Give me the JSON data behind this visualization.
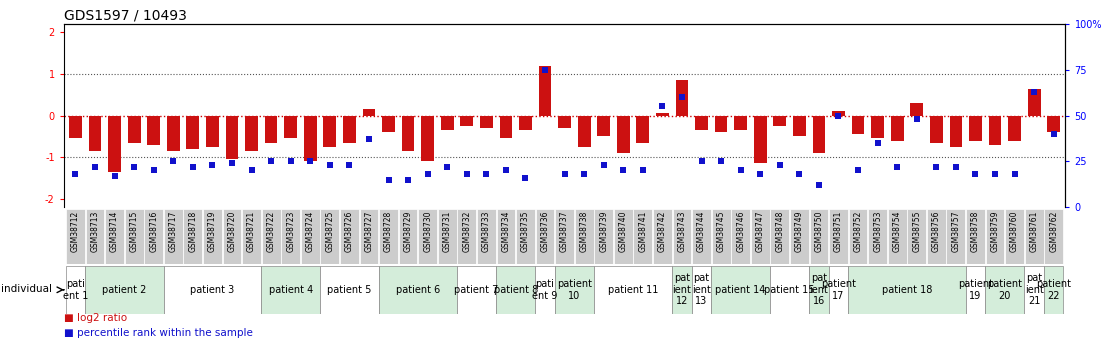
{
  "title": "GDS1597 / 10493",
  "samples": [
    "GSM38712",
    "GSM38713",
    "GSM38714",
    "GSM38715",
    "GSM38716",
    "GSM38717",
    "GSM38718",
    "GSM38719",
    "GSM38720",
    "GSM38721",
    "GSM38722",
    "GSM38723",
    "GSM38724",
    "GSM38725",
    "GSM38726",
    "GSM38727",
    "GSM38728",
    "GSM38729",
    "GSM38730",
    "GSM38731",
    "GSM38732",
    "GSM38733",
    "GSM38734",
    "GSM38735",
    "GSM38736",
    "GSM38737",
    "GSM38738",
    "GSM38739",
    "GSM38740",
    "GSM38741",
    "GSM38742",
    "GSM38743",
    "GSM38744",
    "GSM38745",
    "GSM38746",
    "GSM38747",
    "GSM38748",
    "GSM38749",
    "GSM38750",
    "GSM38751",
    "GSM38752",
    "GSM38753",
    "GSM38754",
    "GSM38755",
    "GSM38756",
    "GSM38757",
    "GSM38758",
    "GSM38759",
    "GSM38760",
    "GSM38761",
    "GSM38762"
  ],
  "log2_ratio": [
    -0.55,
    -0.85,
    -1.35,
    -0.65,
    -0.7,
    -0.85,
    -0.8,
    -0.75,
    -1.05,
    -0.85,
    -0.65,
    -0.55,
    -1.1,
    -0.75,
    -0.65,
    0.15,
    -0.4,
    -0.85,
    -1.1,
    -0.35,
    -0.25,
    -0.3,
    -0.55,
    -0.35,
    1.2,
    -0.3,
    -0.75,
    -0.5,
    -0.9,
    -0.65,
    0.05,
    0.85,
    -0.35,
    -0.4,
    -0.35,
    -1.15,
    -0.25,
    -0.5,
    -0.9,
    0.1,
    -0.45,
    -0.55,
    -0.6,
    0.3,
    -0.65,
    -0.75,
    -0.6,
    -0.7,
    -0.6,
    0.65,
    -0.4
  ],
  "percentile": [
    18,
    22,
    17,
    22,
    20,
    25,
    22,
    23,
    24,
    20,
    25,
    25,
    25,
    23,
    23,
    37,
    15,
    15,
    18,
    22,
    18,
    18,
    20,
    16,
    75,
    18,
    18,
    23,
    20,
    20,
    55,
    60,
    25,
    25,
    20,
    18,
    23,
    18,
    12,
    50,
    20,
    35,
    22,
    48,
    22,
    22,
    18,
    18,
    18,
    63,
    40
  ],
  "patients": [
    {
      "label": "pati\nent 1",
      "start": 0,
      "end": 1,
      "color": "#ffffff"
    },
    {
      "label": "patient 2",
      "start": 1,
      "end": 5,
      "color": "#d4edda"
    },
    {
      "label": "patient 3",
      "start": 5,
      "end": 10,
      "color": "#ffffff"
    },
    {
      "label": "patient 4",
      "start": 10,
      "end": 13,
      "color": "#d4edda"
    },
    {
      "label": "patient 5",
      "start": 13,
      "end": 16,
      "color": "#ffffff"
    },
    {
      "label": "patient 6",
      "start": 16,
      "end": 20,
      "color": "#d4edda"
    },
    {
      "label": "patient 7",
      "start": 20,
      "end": 22,
      "color": "#ffffff"
    },
    {
      "label": "patient 8",
      "start": 22,
      "end": 24,
      "color": "#d4edda"
    },
    {
      "label": "pati\nent 9",
      "start": 24,
      "end": 25,
      "color": "#ffffff"
    },
    {
      "label": "patient\n10",
      "start": 25,
      "end": 27,
      "color": "#d4edda"
    },
    {
      "label": "patient 11",
      "start": 27,
      "end": 31,
      "color": "#ffffff"
    },
    {
      "label": "pat\nient\n12",
      "start": 31,
      "end": 32,
      "color": "#d4edda"
    },
    {
      "label": "pat\nient\n13",
      "start": 32,
      "end": 33,
      "color": "#ffffff"
    },
    {
      "label": "patient 14",
      "start": 33,
      "end": 36,
      "color": "#d4edda"
    },
    {
      "label": "patient 15",
      "start": 36,
      "end": 38,
      "color": "#ffffff"
    },
    {
      "label": "pat\nient\n16",
      "start": 38,
      "end": 39,
      "color": "#d4edda"
    },
    {
      "label": "patient\n17",
      "start": 39,
      "end": 40,
      "color": "#ffffff"
    },
    {
      "label": "patient 18",
      "start": 40,
      "end": 46,
      "color": "#d4edda"
    },
    {
      "label": "patient\n19",
      "start": 46,
      "end": 47,
      "color": "#ffffff"
    },
    {
      "label": "patient\n20",
      "start": 47,
      "end": 49,
      "color": "#d4edda"
    },
    {
      "label": "pat\nient\n21",
      "start": 49,
      "end": 50,
      "color": "#ffffff"
    },
    {
      "label": "patient\n22",
      "start": 50,
      "end": 51,
      "color": "#d4edda"
    }
  ],
  "ylim_left": [
    -2.2,
    2.2
  ],
  "ylim_right": [
    0,
    100
  ],
  "yticks_left": [
    -2,
    -1,
    0,
    1,
    2
  ],
  "yticks_right": [
    0,
    25,
    50,
    75,
    100
  ],
  "right_ylabels": [
    "0",
    "25",
    "50",
    "75",
    "100%"
  ],
  "bar_color": "#cc1111",
  "point_color": "#1111cc",
  "hline0_color": "#cc0000",
  "dotted_color": "#555555",
  "bg_color": "#ffffff",
  "sample_box_color": "#cccccc",
  "title_fontsize": 10,
  "tick_fontsize": 7,
  "sample_fontsize": 5.5,
  "patient_fontsize": 7,
  "legend_fontsize": 7.5
}
